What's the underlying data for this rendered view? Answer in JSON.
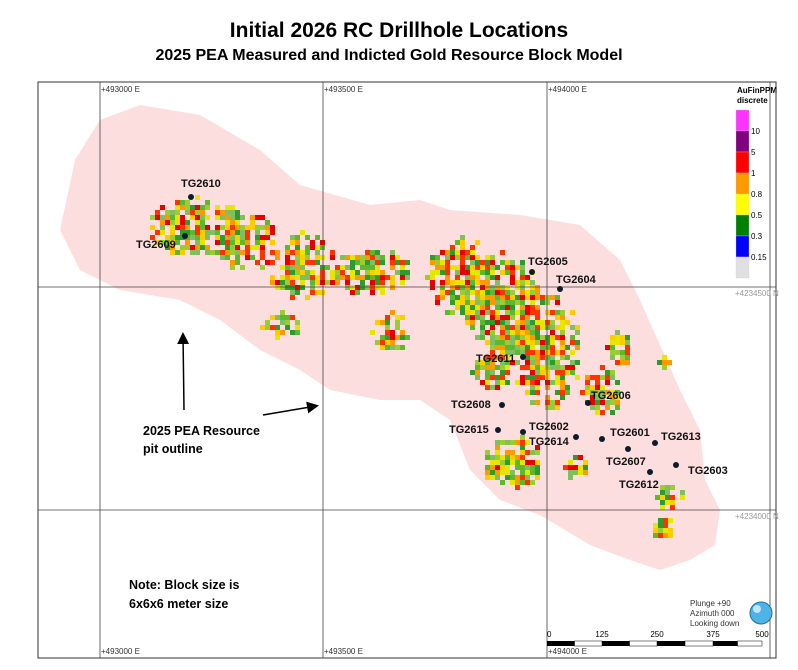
{
  "title": "Initial 2026 RC Drillhole Locations",
  "subtitle": "2025 PEA Measured and Indicted Gold Resource Block Model",
  "grid_labels": {
    "easting": [
      "+493000 E",
      "+493500 E",
      "+494000 E"
    ],
    "northing": [
      "+4234500 N",
      "+4234000 N"
    ]
  },
  "legend": {
    "title": "AuFinPPM discrete",
    "colors": [
      "#ff33ff",
      "#800080",
      "#ff0000",
      "#ff9900",
      "#ffff00",
      "#008000",
      "#0000ff",
      "#e0e0e0"
    ],
    "labels": [
      10,
      5,
      1,
      0.8,
      0.5,
      0.3,
      0.15
    ]
  },
  "drillholes": [
    "TG2610",
    "TG2609",
    "TG2605",
    "TG2604",
    "TG2611",
    "TG2606",
    "TG2608",
    "TG2615",
    "TG2602",
    "TG2614",
    "TG2601",
    "TG2613",
    "TG2607",
    "TG2603",
    "TG2612"
  ],
  "annotation": [
    "2025 PEA Resource",
    "pit outline"
  ],
  "note": [
    "Note: Block size is",
    "6x6x6 meter size"
  ],
  "view_info": [
    "Plunge +90",
    "Azimuth 000",
    "Looking down"
  ],
  "scale_labels": [
    0,
    125,
    250,
    375,
    500
  ]
}
